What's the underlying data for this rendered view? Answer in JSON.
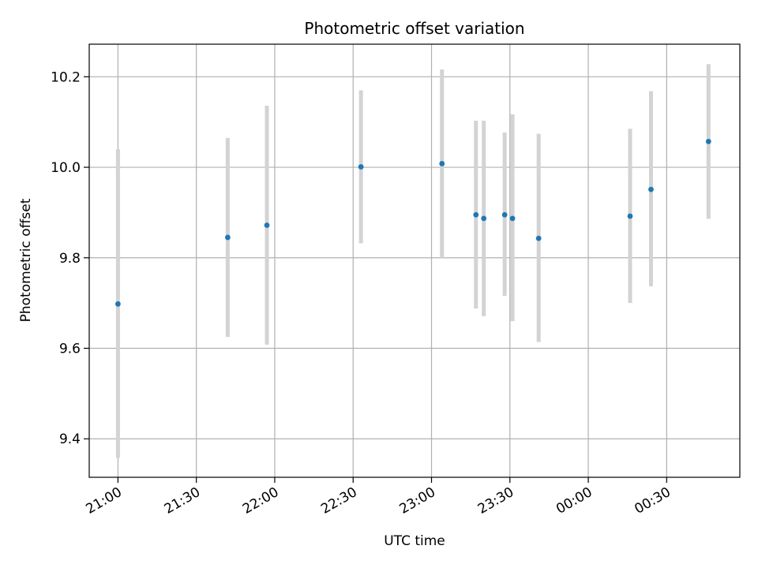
{
  "chart_data": {
    "type": "scatter",
    "title": "Photometric offset variation",
    "xlabel": "UTC time",
    "ylabel": "Photometric offset",
    "x_ticks": [
      "21:00",
      "21:30",
      "22:00",
      "22:30",
      "23:00",
      "23:30",
      "00:00",
      "00:30"
    ],
    "y_ticks": [
      "9.4",
      "9.6",
      "9.8",
      "10.0",
      "10.2"
    ],
    "xlim": [
      "20:49",
      "00:58"
    ],
    "ylim": [
      9.315,
      10.272
    ],
    "grid": true,
    "colors": {
      "point": "#1f77b4",
      "errorbar": "#d3d3d3",
      "grid": "#b0b0b0"
    },
    "points": [
      {
        "time": "21:00",
        "value": 9.698,
        "low": 9.358,
        "high": 10.04
      },
      {
        "time": "21:42",
        "value": 9.845,
        "low": 9.625,
        "high": 10.065
      },
      {
        "time": "21:57",
        "value": 9.872,
        "low": 9.608,
        "high": 10.136
      },
      {
        "time": "22:33",
        "value": 10.001,
        "low": 9.832,
        "high": 10.17
      },
      {
        "time": "23:04",
        "value": 10.008,
        "low": 9.8,
        "high": 10.216
      },
      {
        "time": "23:17",
        "value": 9.895,
        "low": 9.688,
        "high": 10.103
      },
      {
        "time": "23:20",
        "value": 9.887,
        "low": 9.671,
        "high": 10.103
      },
      {
        "time": "23:28",
        "value": 9.895,
        "low": 9.716,
        "high": 10.077
      },
      {
        "time": "23:31",
        "value": 9.887,
        "low": 9.66,
        "high": 10.117
      },
      {
        "time": "23:41",
        "value": 9.843,
        "low": 9.614,
        "high": 10.074
      },
      {
        "time": "00:16",
        "value": 9.892,
        "low": 9.7,
        "high": 10.085
      },
      {
        "time": "00:24",
        "value": 9.951,
        "low": 9.737,
        "high": 10.168
      },
      {
        "time": "00:46",
        "value": 10.057,
        "low": 9.886,
        "high": 10.228
      }
    ]
  }
}
